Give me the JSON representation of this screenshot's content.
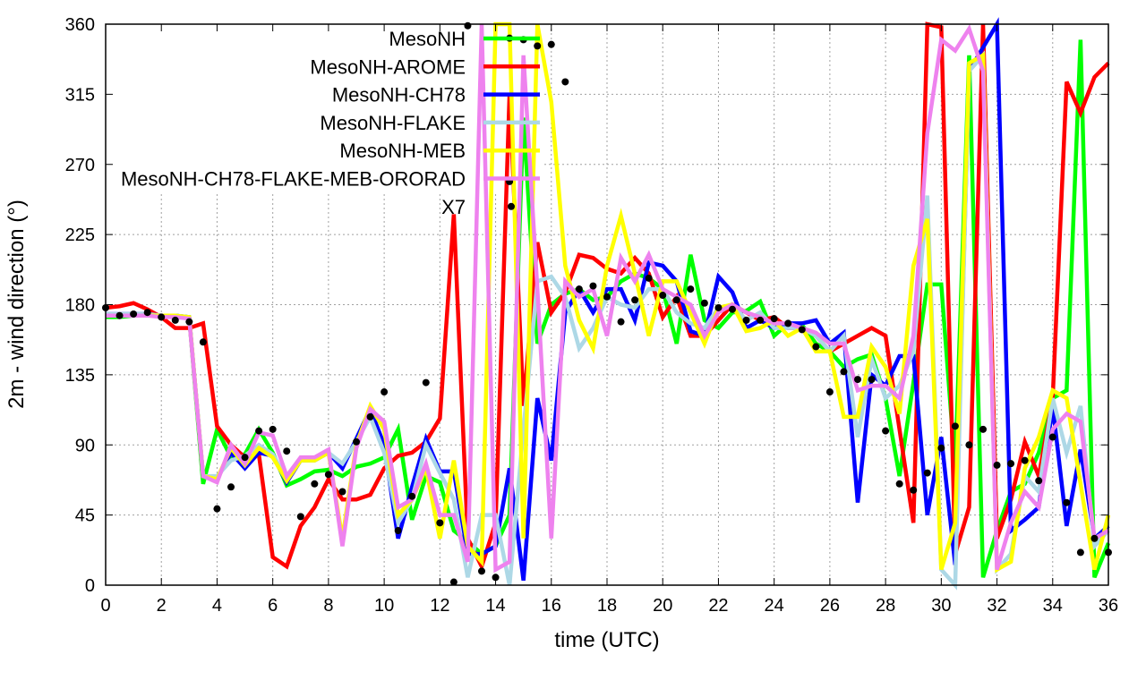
{
  "chart_data": {
    "type": "line",
    "title": "",
    "xlabel": "time (UTC)",
    "ylabel": "2m - wind direction (°)",
    "xlim": [
      0,
      36
    ],
    "ylim": [
      0,
      360
    ],
    "xticks": [
      0,
      2,
      4,
      6,
      8,
      10,
      12,
      14,
      16,
      18,
      20,
      22,
      24,
      26,
      28,
      30,
      32,
      34,
      36
    ],
    "yticks": [
      0,
      45,
      90,
      135,
      180,
      225,
      270,
      315,
      360
    ],
    "grid": true,
    "legend_position": "top-left-inside",
    "x_step": 0.5,
    "series": [
      {
        "name": "MesoNH",
        "color": "#00ff00",
        "values": [
          172,
          172,
          173,
          173,
          173,
          173,
          172,
          65,
          100,
          82,
          84,
          100,
          85,
          64,
          68,
          73,
          74,
          70,
          76,
          78,
          82,
          100,
          42,
          70,
          66,
          35,
          28,
          20,
          25,
          45,
          300,
          155,
          180,
          187,
          190,
          183,
          185,
          195,
          200,
          197,
          190,
          155,
          212,
          170,
          165,
          175,
          176,
          182,
          160,
          168,
          167,
          155,
          150,
          140,
          145,
          148,
          120,
          70,
          130,
          193,
          193,
          75,
          340,
          5,
          35,
          60,
          65,
          85,
          120,
          125,
          350,
          5,
          27
        ]
      },
      {
        "name": "MesoNH-AROME",
        "color": "#ff0000",
        "values": [
          178,
          179,
          181,
          177,
          172,
          165,
          165,
          168,
          102,
          90,
          82,
          84,
          18,
          12,
          38,
          50,
          68,
          55,
          55,
          58,
          75,
          83,
          85,
          92,
          107,
          238,
          30,
          12,
          40,
          315,
          115,
          220,
          175,
          188,
          212,
          210,
          203,
          200,
          210,
          200,
          172,
          185,
          160,
          160,
          170,
          180,
          175,
          170,
          172,
          165,
          165,
          160,
          150,
          155,
          160,
          165,
          160,
          100,
          40,
          360,
          358,
          20,
          50,
          360,
          30,
          55,
          92,
          70,
          120,
          323,
          303,
          326,
          335
        ]
      },
      {
        "name": "MesoNH-CH78",
        "color": "#0000ff",
        "values": [
          174,
          174,
          174,
          174,
          173,
          173,
          172,
          70,
          68,
          85,
          75,
          85,
          83,
          66,
          80,
          80,
          85,
          75,
          94,
          113,
          90,
          30,
          63,
          94,
          73,
          73,
          20,
          20,
          25,
          75,
          3,
          120,
          80,
          175,
          190,
          175,
          190,
          190,
          170,
          207,
          205,
          195,
          163,
          160,
          198,
          188,
          165,
          170,
          165,
          168,
          168,
          170,
          155,
          162,
          53,
          135,
          128,
          147,
          147,
          45,
          95,
          13,
          330,
          345,
          360,
          35,
          42,
          50,
          115,
          38,
          87,
          30,
          38
        ]
      },
      {
        "name": "MesoNH-FLAKE",
        "color": "#add8e6",
        "values": [
          174,
          174,
          174,
          174,
          173,
          173,
          172,
          70,
          70,
          80,
          83,
          90,
          84,
          68,
          80,
          80,
          85,
          78,
          92,
          108,
          85,
          40,
          55,
          90,
          72,
          55,
          5,
          45,
          45,
          0,
          100,
          195,
          198,
          185,
          152,
          165,
          185,
          180,
          178,
          190,
          190,
          175,
          168,
          165,
          178,
          180,
          170,
          175,
          165,
          165,
          165,
          160,
          150,
          160,
          95,
          145,
          120,
          128,
          150,
          250,
          10,
          0,
          330,
          340,
          10,
          20,
          70,
          60,
          120,
          85,
          115,
          25,
          35
        ]
      },
      {
        "name": "MesoNH-MEB",
        "color": "#ffff00",
        "values": [
          173,
          173,
          173,
          173,
          173,
          173,
          172,
          70,
          68,
          88,
          77,
          88,
          82,
          67,
          80,
          80,
          85,
          30,
          90,
          115,
          100,
          45,
          55,
          75,
          30,
          80,
          25,
          15,
          360,
          360,
          30,
          360,
          310,
          205,
          170,
          152,
          205,
          237,
          200,
          160,
          195,
          195,
          175,
          155,
          178,
          180,
          163,
          165,
          170,
          160,
          165,
          150,
          150,
          108,
          108,
          153,
          140,
          110,
          205,
          235,
          10,
          40,
          335,
          340,
          10,
          15,
          75,
          95,
          125,
          120,
          65,
          10,
          45
        ]
      },
      {
        "name": "MesoNH-CH78-FLAKE-MEB-ORORAD",
        "color": "#ee82ee",
        "values": [
          173,
          173,
          173,
          173,
          172,
          172,
          171,
          70,
          66,
          90,
          78,
          98,
          96,
          70,
          82,
          82,
          87,
          25,
          88,
          113,
          105,
          50,
          55,
          78,
          45,
          45,
          15,
          360,
          10,
          15,
          340,
          190,
          30,
          195,
          185,
          190,
          160,
          210,
          195,
          212,
          190,
          185,
          180,
          160,
          175,
          180,
          175,
          172,
          168,
          168,
          165,
          162,
          155,
          155,
          125,
          128,
          128,
          120,
          160,
          290,
          350,
          343,
          357,
          330,
          10,
          40,
          60,
          50,
          100,
          110,
          105,
          30,
          35
        ]
      }
    ],
    "points": {
      "name": "X7",
      "color": "#000000",
      "xy": [
        [
          0,
          178
        ],
        [
          0.5,
          173
        ],
        [
          1,
          174
        ],
        [
          1.5,
          175
        ],
        [
          2,
          172
        ],
        [
          2.5,
          170
        ],
        [
          3,
          169
        ],
        [
          3.5,
          156
        ],
        [
          4,
          49
        ],
        [
          4.5,
          63
        ],
        [
          5,
          82
        ],
        [
          5.5,
          99
        ],
        [
          6,
          100
        ],
        [
          6.5,
          86
        ],
        [
          7,
          44
        ],
        [
          7.5,
          65
        ],
        [
          8,
          71
        ],
        [
          8.5,
          60
        ],
        [
          9,
          92
        ],
        [
          9.5,
          108
        ],
        [
          10,
          124
        ],
        [
          10.5,
          35
        ],
        [
          11,
          57
        ],
        [
          11.5,
          130
        ],
        [
          12,
          40
        ],
        [
          12.5,
          2
        ],
        [
          13,
          359
        ],
        [
          13.5,
          9
        ],
        [
          14,
          5
        ],
        [
          14.5,
          351
        ],
        [
          14.5,
          259
        ],
        [
          15,
          350
        ],
        [
          15.5,
          346
        ],
        [
          16,
          347
        ],
        [
          16.5,
          323
        ],
        [
          17,
          190
        ],
        [
          17.5,
          192
        ],
        [
          18,
          185
        ],
        [
          18.5,
          169
        ],
        [
          19,
          183
        ],
        [
          19.5,
          197
        ],
        [
          20,
          186
        ],
        [
          20.5,
          183
        ],
        [
          21,
          190
        ],
        [
          21.5,
          181
        ],
        [
          22,
          178
        ],
        [
          22.5,
          177
        ],
        [
          23,
          170
        ],
        [
          23.5,
          170
        ],
        [
          24,
          171
        ],
        [
          24.5,
          168
        ],
        [
          25,
          164
        ],
        [
          25.5,
          153
        ],
        [
          26,
          124
        ],
        [
          26.5,
          137
        ],
        [
          27,
          132
        ],
        [
          27.5,
          132
        ],
        [
          28,
          99
        ],
        [
          28.5,
          65
        ],
        [
          29,
          61
        ],
        [
          29.5,
          72
        ],
        [
          30,
          88
        ],
        [
          30.5,
          102
        ],
        [
          31,
          90
        ],
        [
          31.5,
          100
        ],
        [
          32,
          77
        ],
        [
          32.5,
          78
        ],
        [
          33,
          80
        ],
        [
          33.5,
          67
        ],
        [
          34,
          95
        ],
        [
          34.5,
          53
        ],
        [
          35,
          21
        ],
        [
          35.5,
          30
        ],
        [
          36,
          21
        ]
      ]
    }
  }
}
